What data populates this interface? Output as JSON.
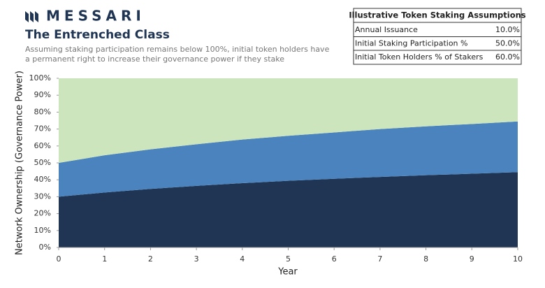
{
  "logo": "MESSARI",
  "chart_data": {
    "type": "stacked_area",
    "title": "The Entrenched Class",
    "subtitle": "Assuming staking participation remains below 100%, initial token holders have a permanent right to increase their governance power if they stake",
    "x_label": "Year",
    "y_label": "Network Ownership (Governance Power)",
    "x": [
      0,
      1,
      2,
      3,
      4,
      5,
      6,
      7,
      8,
      9,
      10
    ],
    "series": [
      {
        "color": "#1f3553",
        "values": [
          30,
          32.5,
          34.6,
          36.4,
          38,
          39.4,
          40.6,
          41.7,
          42.7,
          43.6,
          44.5
        ]
      },
      {
        "color": "#4a83bd",
        "values": [
          20,
          22,
          23.4,
          24.6,
          25.8,
          26.6,
          27.4,
          28.3,
          28.9,
          29.4,
          30
        ]
      },
      {
        "color": "#cde5bd",
        "values": [
          50,
          45.5,
          42,
          39,
          36.2,
          34,
          32,
          30,
          28.4,
          27,
          25.5
        ]
      }
    ],
    "xlim": [
      0,
      10
    ],
    "xticks": [
      0,
      1,
      2,
      3,
      4,
      5,
      6,
      7,
      8,
      9,
      10
    ],
    "ylim": [
      0,
      100
    ],
    "yticks": [
      {
        "value": 0,
        "label": "0%"
      },
      {
        "value": 10,
        "label": "10%"
      },
      {
        "value": 20,
        "label": "20%"
      },
      {
        "value": 30,
        "label": "30%"
      },
      {
        "value": 40,
        "label": "40%"
      },
      {
        "value": 50,
        "label": "50%"
      },
      {
        "value": 60,
        "label": "60%"
      },
      {
        "value": 70,
        "label": "70%"
      },
      {
        "value": 80,
        "label": "80%"
      },
      {
        "value": 90,
        "label": "90%"
      },
      {
        "value": 100,
        "label": "100%"
      }
    ]
  },
  "assumptions_table": {
    "title": "Illustrative Token Staking Assumptions",
    "rows": [
      [
        "Annual Issuance",
        "10.0%"
      ],
      [
        "Initial Staking Participation %",
        "50.0%"
      ],
      [
        "Initial Token Holders % of Stakers",
        "60.0%"
      ]
    ]
  }
}
